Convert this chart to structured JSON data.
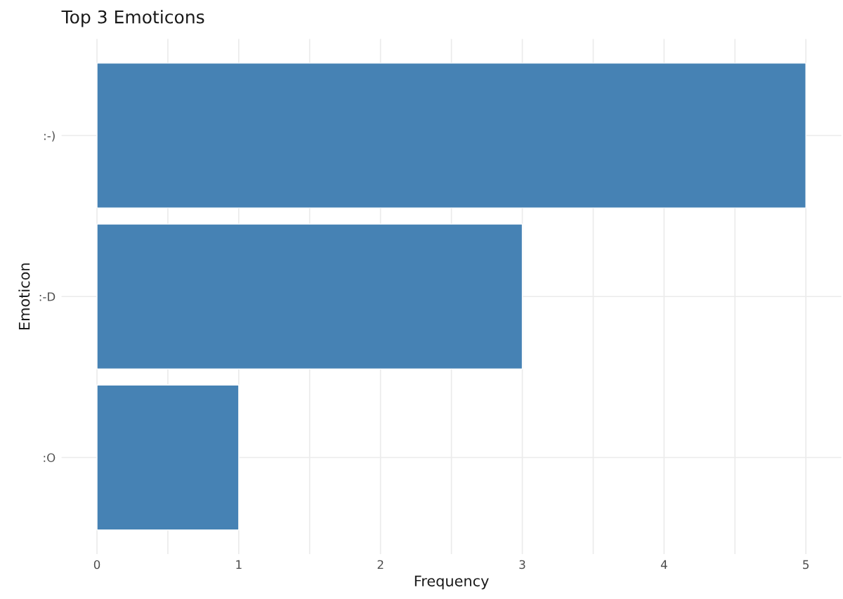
{
  "chart_data": {
    "type": "bar",
    "orientation": "horizontal",
    "title": "Top 3 Emoticons",
    "xlabel": "Frequency",
    "ylabel": "Emoticon",
    "categories": [
      ":-)",
      ":-D",
      ":O"
    ],
    "values": [
      5,
      3,
      1
    ],
    "color": "#4682b4",
    "xlim": [
      -0.25,
      5.25
    ],
    "xticks": [
      0,
      {
        "value": 0.5,
        "label": null
      },
      1,
      {
        "value": 1.5,
        "label": null
      },
      2,
      {
        "value": 2.5,
        "label": null
      },
      3,
      {
        "value": 3.5,
        "label": null
      },
      4,
      {
        "value": 4.5,
        "label": null
      },
      5
    ],
    "grid": true
  }
}
